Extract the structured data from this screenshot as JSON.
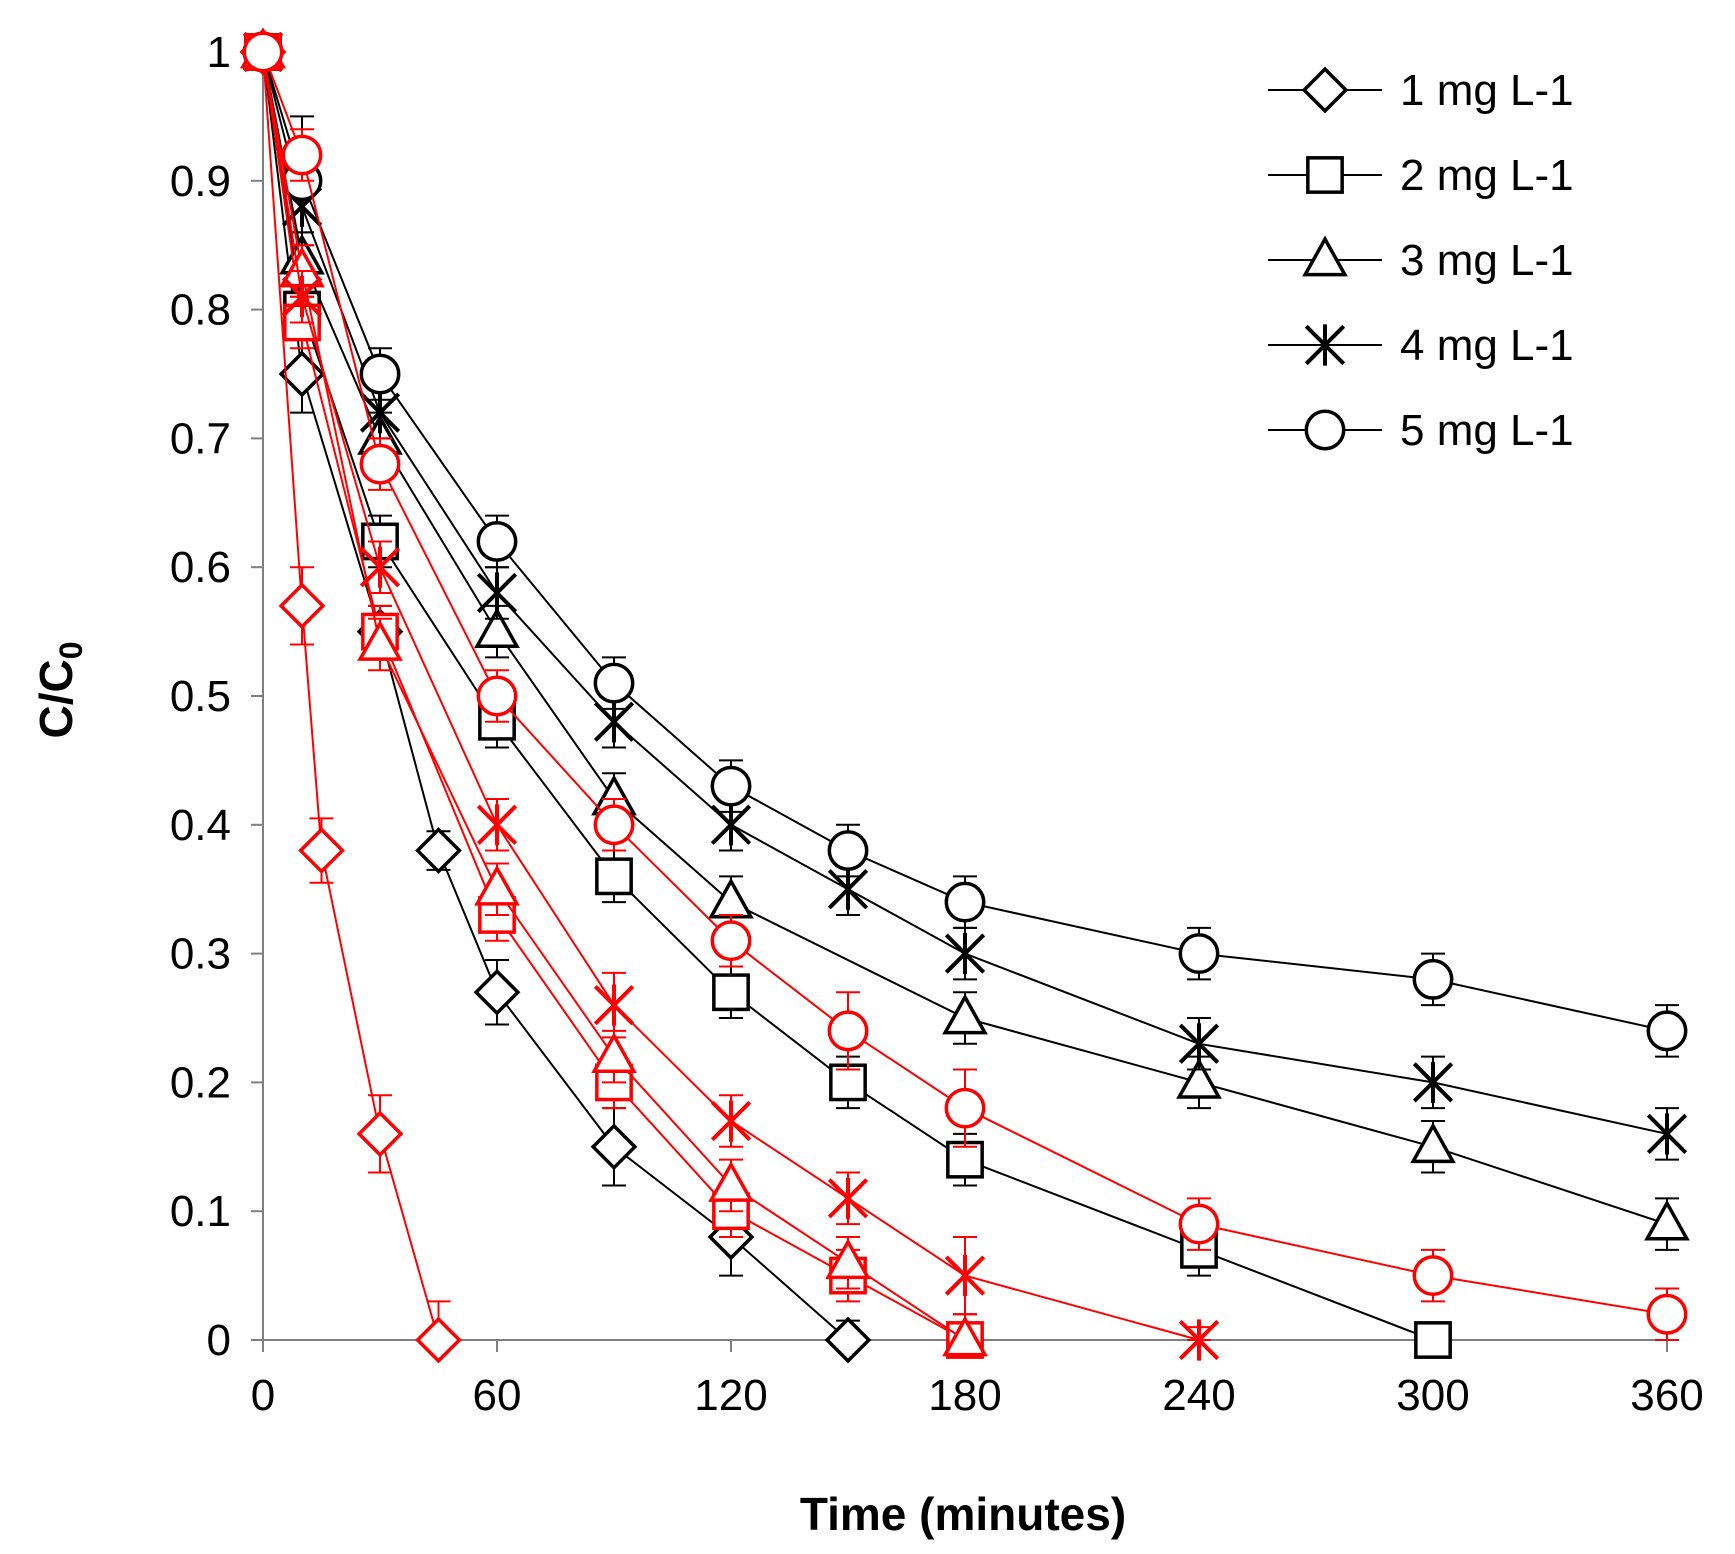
{
  "chart_data": {
    "type": "line",
    "title": "",
    "xlabel": "Time (minutes)",
    "ylabel_main": "C/C",
    "ylabel_sub": "0",
    "xlim": [
      0,
      360
    ],
    "ylim": [
      0,
      1
    ],
    "x_ticks": [
      0,
      60,
      120,
      180,
      240,
      300,
      360
    ],
    "x_tick_labels": [
      "0",
      "60",
      "120",
      "180",
      "240",
      "300",
      "360"
    ],
    "y_ticks": [
      0,
      0.1,
      0.2,
      0.3,
      0.4,
      0.5,
      0.6,
      0.7,
      0.8,
      0.9,
      1
    ],
    "y_tick_labels": [
      "0",
      "0.1",
      "0.2",
      "0.3",
      "0.4",
      "0.5",
      "0.6",
      "0.7",
      "0.8",
      "0.9",
      "1"
    ],
    "legend_position": "top-right",
    "legend": [
      {
        "label": "1 mg L-1",
        "marker": "diamond"
      },
      {
        "label": "2 mg L-1",
        "marker": "square"
      },
      {
        "label": "3 mg L-1",
        "marker": "triangle"
      },
      {
        "label": "4 mg L-1",
        "marker": "star"
      },
      {
        "label": "5 mg L-1",
        "marker": "circle"
      }
    ],
    "colors": {
      "black_group": "#000000",
      "red_group": "#ff0000",
      "axis": "#7f7f7f"
    },
    "series": [
      {
        "name": "1 mg L-1",
        "group": "black",
        "marker": "diamond",
        "x": [
          0,
          10,
          30,
          45,
          60,
          90,
          120,
          150
        ],
        "y": [
          1.0,
          0.75,
          0.55,
          0.38,
          0.27,
          0.15,
          0.08,
          0.0
        ],
        "err": [
          0,
          0.03,
          0.02,
          0.015,
          0.025,
          0.03,
          0.03,
          0.015
        ]
      },
      {
        "name": "2 mg L-1",
        "group": "black",
        "marker": "square",
        "x": [
          0,
          10,
          30,
          60,
          90,
          120,
          150,
          180,
          240,
          300
        ],
        "y": [
          1.0,
          0.8,
          0.62,
          0.48,
          0.36,
          0.27,
          0.2,
          0.14,
          0.07,
          0.0
        ],
        "err": [
          0,
          0.02,
          0.02,
          0.02,
          0.02,
          0.02,
          0.02,
          0.02,
          0.02,
          0.01
        ]
      },
      {
        "name": "3 mg L-1",
        "group": "black",
        "marker": "triangle",
        "x": [
          0,
          10,
          30,
          60,
          90,
          120,
          180,
          240,
          300,
          360
        ],
        "y": [
          1.0,
          0.84,
          0.7,
          0.55,
          0.42,
          0.34,
          0.25,
          0.2,
          0.15,
          0.09
        ],
        "err": [
          0,
          0.02,
          0.02,
          0.02,
          0.02,
          0.02,
          0.02,
          0.02,
          0.02,
          0.02
        ]
      },
      {
        "name": "4 mg L-1",
        "group": "black",
        "marker": "star",
        "x": [
          0,
          10,
          30,
          60,
          90,
          120,
          150,
          180,
          240,
          300,
          360
        ],
        "y": [
          1.0,
          0.88,
          0.72,
          0.58,
          0.48,
          0.4,
          0.35,
          0.3,
          0.23,
          0.2,
          0.16
        ],
        "err": [
          0,
          0.02,
          0.02,
          0.02,
          0.02,
          0.02,
          0.02,
          0.02,
          0.02,
          0.02,
          0.02
        ]
      },
      {
        "name": "5 mg L-1",
        "group": "black",
        "marker": "circle",
        "x": [
          0,
          10,
          30,
          60,
          90,
          120,
          150,
          180,
          240,
          300,
          360
        ],
        "y": [
          1.0,
          0.9,
          0.75,
          0.62,
          0.51,
          0.43,
          0.38,
          0.34,
          0.3,
          0.28,
          0.24
        ],
        "err": [
          0,
          0.05,
          0.02,
          0.02,
          0.02,
          0.02,
          0.02,
          0.02,
          0.02,
          0.02,
          0.02
        ]
      },
      {
        "name": "1 mg L-1 (red)",
        "group": "red",
        "marker": "diamond",
        "x": [
          0,
          10,
          15,
          30,
          45
        ],
        "y": [
          1.0,
          0.57,
          0.38,
          0.16,
          0.0
        ],
        "err": [
          0,
          0.03,
          0.025,
          0.03,
          0.03
        ]
      },
      {
        "name": "2 mg L-1 (red)",
        "group": "red",
        "marker": "square",
        "x": [
          0,
          10,
          30,
          60,
          90,
          120,
          150,
          180
        ],
        "y": [
          1.0,
          0.79,
          0.55,
          0.33,
          0.2,
          0.1,
          0.05,
          0.0
        ],
        "err": [
          0,
          0.02,
          0.02,
          0.02,
          0.02,
          0.02,
          0.02,
          0.02
        ]
      },
      {
        "name": "3 mg L-1 (red)",
        "group": "red",
        "marker": "triangle",
        "x": [
          0,
          10,
          30,
          60,
          90,
          120,
          150,
          180
        ],
        "y": [
          1.0,
          0.83,
          0.54,
          0.35,
          0.22,
          0.12,
          0.06,
          0.0
        ],
        "err": [
          0,
          0.02,
          0.02,
          0.02,
          0.02,
          0.02,
          0.02,
          0.02
        ]
      },
      {
        "name": "4 mg L-1 (red)",
        "group": "red",
        "marker": "star",
        "x": [
          0,
          10,
          30,
          60,
          90,
          120,
          150,
          180,
          240
        ],
        "y": [
          1.0,
          0.81,
          0.6,
          0.4,
          0.26,
          0.17,
          0.11,
          0.05,
          0.0
        ],
        "err": [
          0,
          0.02,
          0.02,
          0.02,
          0.025,
          0.02,
          0.02,
          0.03,
          0.01
        ]
      },
      {
        "name": "5 mg L-1 (red)",
        "group": "red",
        "marker": "circle",
        "x": [
          0,
          10,
          30,
          60,
          90,
          120,
          150,
          180,
          240,
          300,
          360
        ],
        "y": [
          1.0,
          0.92,
          0.68,
          0.5,
          0.4,
          0.31,
          0.24,
          0.18,
          0.09,
          0.05,
          0.02
        ],
        "err": [
          0,
          0.02,
          0.02,
          0.02,
          0.02,
          0.02,
          0.03,
          0.03,
          0.02,
          0.02,
          0.02
        ]
      }
    ]
  }
}
